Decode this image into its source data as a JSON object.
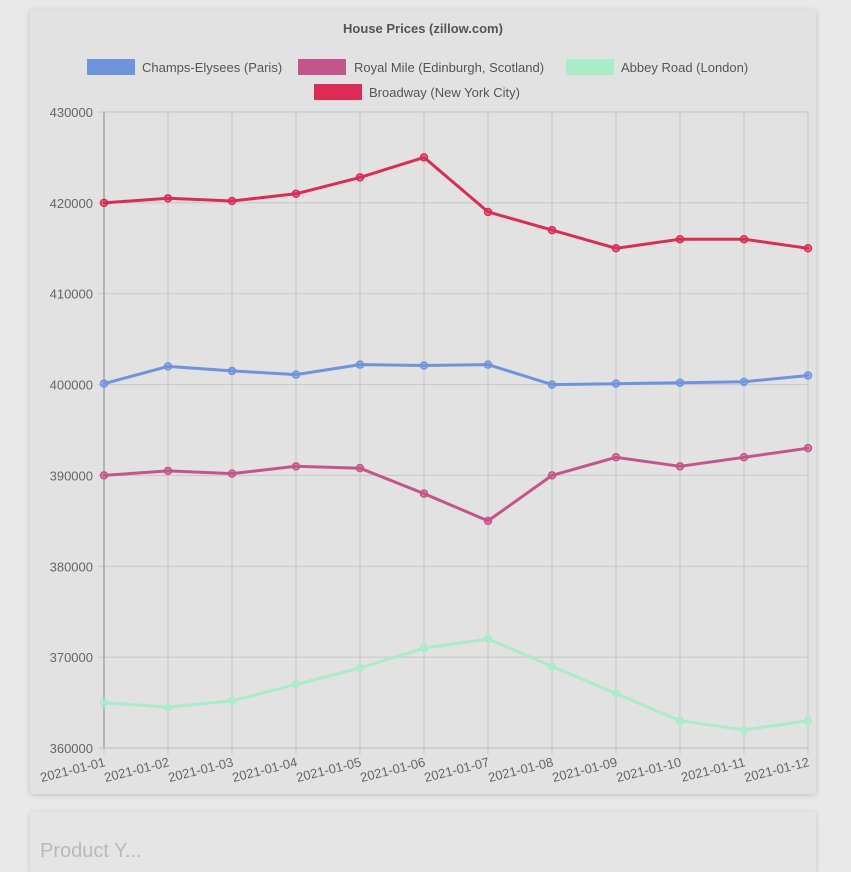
{
  "chart_data": {
    "type": "line",
    "title": "House Prices (zillow.com)",
    "xlabel": "",
    "ylabel": "",
    "categories": [
      "2021-01-01",
      "2021-01-02",
      "2021-01-03",
      "2021-01-04",
      "2021-01-05",
      "2021-01-06",
      "2021-01-07",
      "2021-01-08",
      "2021-01-09",
      "2021-01-10",
      "2021-01-11",
      "2021-01-12"
    ],
    "ylim": [
      360000,
      430000
    ],
    "yticks": [
      "430000",
      "420000",
      "410000",
      "400000",
      "390000",
      "380000",
      "370000",
      "360000"
    ],
    "grid": true,
    "legend_position": "top",
    "series": [
      {
        "name": "Champs-Elysees (Paris)",
        "color": "#6f93dd",
        "values": [
          400100,
          402000,
          401500,
          401100,
          402200,
          402100,
          402200,
          400000,
          400100,
          400200,
          400300,
          401000
        ]
      },
      {
        "name": "Royal Mile (Edinburgh, Scotland)",
        "color": "#c4548c",
        "values": [
          390000,
          390500,
          390200,
          391000,
          390800,
          388000,
          385000,
          390000,
          392000,
          391000,
          392000,
          393000
        ]
      },
      {
        "name": "Abbey Road (London)",
        "color": "#a9ecc8",
        "values": [
          365000,
          364500,
          365200,
          367000,
          368800,
          371000,
          372000,
          369000,
          366000,
          363000,
          362000,
          363000
        ]
      },
      {
        "name": "Broadway (New York City)",
        "color": "#dc2c55",
        "values": [
          420000,
          420500,
          420200,
          421000,
          422800,
          425000,
          419000,
          417000,
          415000,
          416000,
          416000,
          415000
        ]
      }
    ]
  },
  "next_section": {
    "title": "Product Y..."
  }
}
